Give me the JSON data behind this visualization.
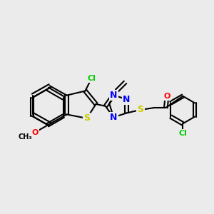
{
  "background_color": "#ebebeb",
  "atom_colors": {
    "C": "#000000",
    "N": "#0000ff",
    "O": "#ff0000",
    "S": "#cccc00",
    "Cl": "#00cc00"
  },
  "bond_color": "#000000",
  "figsize": [
    3.0,
    3.0
  ],
  "dpi": 100
}
